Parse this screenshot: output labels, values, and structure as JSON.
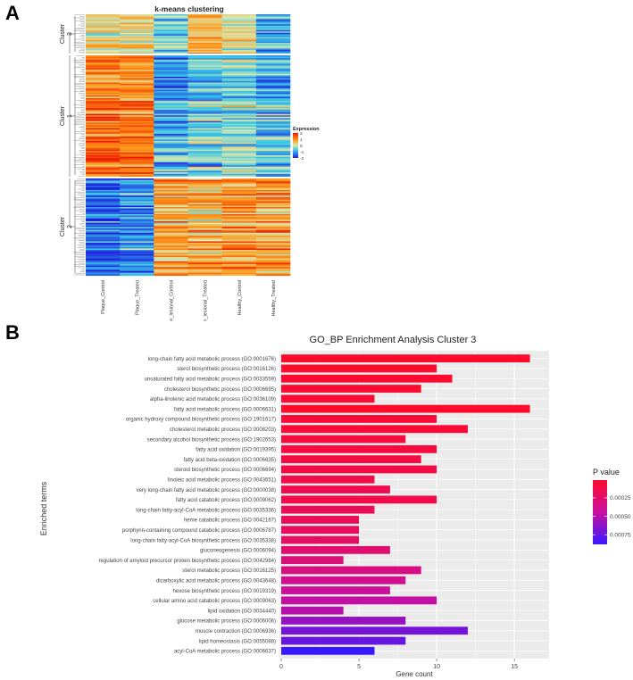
{
  "panel_a_label": "A",
  "panel_b_label": "B",
  "chart_data": [
    {
      "type": "heatmap",
      "title": "k-means clustering",
      "columns": [
        "Plaque_Control",
        "Plaque_Treated",
        "Non_lesional_Control",
        "Non_lesional_Treated",
        "Healthy_Control",
        "Healthy_Treated"
      ],
      "clusters": [
        {
          "label": "Cluster 3",
          "profile": [
            0.4,
            0.5,
            -0.4,
            0.8,
            0.3,
            -0.8
          ]
        },
        {
          "label": "Cluster 1",
          "profile": [
            1.3,
            1.2,
            -0.9,
            -0.6,
            -0.4,
            -0.7
          ]
        },
        {
          "label": "Cluster 2",
          "profile": [
            -1.4,
            -1.2,
            0.8,
            0.6,
            0.9,
            0.8
          ]
        }
      ],
      "legend": {
        "title": "Expression",
        "ticks": [
          "2",
          "1",
          "0",
          "-1",
          "-2"
        ],
        "range": [
          -2,
          2
        ]
      },
      "colors": {
        "low": "#1f1fe0",
        "mid_low": "#35c5e8",
        "mid": "#d8e8b0",
        "mid_high": "#ff9a1a",
        "high": "#ee1a00"
      }
    },
    {
      "type": "bar",
      "orientation": "horizontal",
      "title": "GO_BP Enrichment Analysis Cluster 3",
      "xlabel": "Gene count",
      "ylabel": "Enriched terms",
      "xlim": [
        0,
        17
      ],
      "xticks": [
        0,
        5,
        10,
        15
      ],
      "legend_title": "P value",
      "legend_ticks": [
        {
          "label": "0.00025",
          "value": 0.00025
        },
        {
          "label": "0.00050",
          "value": 0.0005
        },
        {
          "label": "0.00075",
          "value": 0.00075
        }
      ],
      "p_range": [
        1e-05,
        0.00088
      ],
      "colors": {
        "low_p": "#ff0a2a",
        "mid_p": "#c80fa0",
        "high_p": "#3a18ff"
      },
      "categories": [
        "long-chain fatty acid metabolic process (GO:0001676)",
        "sterol biosynthetic process (GO:0016126)",
        "unsaturated fatty acid metabolic process (GO:0033559)",
        "cholesterol biosynthetic process (GO:0006695)",
        "alpha-linolenic acid metabolic process (GO:0036109)",
        "fatty acid metabolic process (GO:0006631)",
        "organic hydroxy compound biosynthetic process (GO:1901617)",
        "cholesterol metabolic process (GO:0008203)",
        "secondary alcohol biosynthetic process (GO:1902653)",
        "fatty acid oxidation (GO:0019395)",
        "fatty acid beta-oxidation (GO:0006635)",
        "steroid biosynthetic process (GO:0006694)",
        "linoleic acid metabolic process (GO:0043651)",
        "very long-chain fatty acid metabolic process (GO:0000038)",
        "fatty acid catabolic process (GO:0009062)",
        "long-chain fatty-acyl-CoA metabolic process (GO:0035336)",
        "heme catabolic process (GO:0042167)",
        "porphyrin-containing compound catabolic process (GO:0006787)",
        "long-chain fatty-acyl-CoA biosynthetic process (GO:0035338)",
        "gluconeogenesis (GO:0006094)",
        "regulation of amyloid precursor protein biosynthetic process (GO:0042984)",
        "sterol metabolic process (GO:0016125)",
        "dicarboxylic acid metabolic process (GO:0043648)",
        "hexose biosynthetic process (GO:0019319)",
        "cellular amino acid catabolic process (GO:0009063)",
        "lipid oxidation (GO:0034440)",
        "glucose metabolic process (GO:0006006)",
        "muscle contraction (GO:0006936)",
        "lipid homeostasis (GO:0055088)",
        "acyl-CoA metabolic process (GO:0006637)"
      ],
      "values": [
        16,
        10,
        11,
        9,
        6,
        16,
        10,
        12,
        8,
        10,
        9,
        10,
        6,
        7,
        10,
        6,
        5,
        5,
        5,
        7,
        4,
        9,
        8,
        7,
        10,
        4,
        8,
        12,
        8,
        6
      ],
      "p_values": [
        1e-05,
        2e-05,
        3e-05,
        4e-05,
        5e-05,
        2e-05,
        6e-05,
        5e-05,
        8e-05,
        9e-05,
        0.0001,
        0.00011,
        0.00012,
        0.00014,
        0.00013,
        0.00016,
        0.00018,
        0.0002,
        0.00022,
        0.00026,
        0.0003,
        0.00033,
        0.00038,
        0.00042,
        0.00046,
        0.0005,
        0.0006,
        0.0007,
        0.00074,
        0.00088
      ]
    }
  ]
}
